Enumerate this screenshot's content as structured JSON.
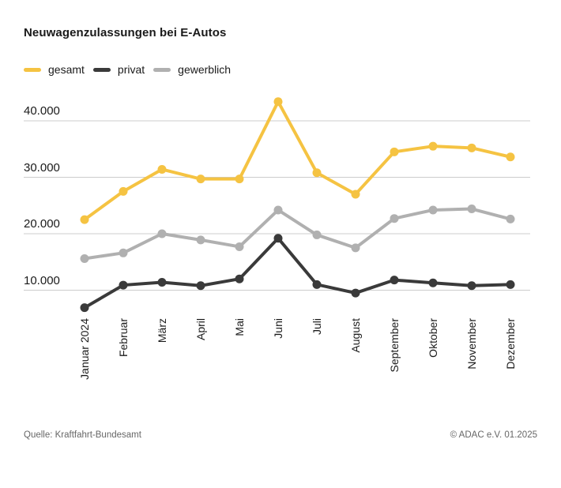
{
  "title": "Neuwagenzulassungen bei E-Autos",
  "chart_data": {
    "type": "line",
    "title": "Neuwagenzulassungen bei E-Autos",
    "categories": [
      "Januar 2024",
      "Februar",
      "März",
      "April",
      "Mai",
      "Juni",
      "Juli",
      "August",
      "September",
      "Oktober",
      "November",
      "Dezember"
    ],
    "series": [
      {
        "name": "gesamt",
        "color": "#F5C342",
        "values": [
          22500,
          27500,
          31400,
          29700,
          29700,
          43400,
          30800,
          27000,
          34500,
          35500,
          35200,
          33600
        ]
      },
      {
        "name": "privat",
        "color": "#3A3A3A",
        "values": [
          6900,
          10900,
          11400,
          10800,
          12000,
          19200,
          11000,
          9500,
          11800,
          11300,
          10800,
          11000
        ]
      },
      {
        "name": "gewerblich",
        "color": "#B0B0B0",
        "values": [
          15600,
          16600,
          20000,
          18900,
          17700,
          24200,
          19800,
          17500,
          22700,
          24200,
          24400,
          22600
        ]
      }
    ],
    "y_ticks": [
      {
        "value": 40000,
        "label": "40.000"
      },
      {
        "value": 30000,
        "label": "30.000"
      },
      {
        "value": 20000,
        "label": "20.000"
      },
      {
        "value": 10000,
        "label": "10.000"
      }
    ],
    "ylim": [
      5000,
      45000
    ],
    "xlabel": "",
    "ylabel": "",
    "grid": true,
    "legend_position": "top-left"
  },
  "footer": {
    "source": "Quelle: Kraftfahrt-Bundesamt",
    "copyright": "© ADAC e.V. 01.2025"
  },
  "colors": {
    "grid": "#CCCCCC",
    "text": "#1A1A1A",
    "footer_text": "#666666",
    "background": "#FFFFFF"
  }
}
